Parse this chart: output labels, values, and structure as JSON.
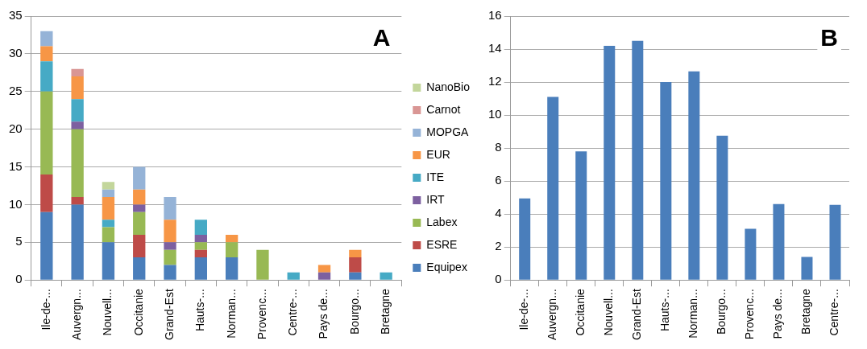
{
  "chart_data": [
    {
      "type": "bar",
      "stacked": true,
      "annotations": [
        "A"
      ],
      "categories": [
        "Ile-de-...",
        "Auvergn...",
        "Nouvell...",
        "Occitanie",
        "Grand-Est",
        "Hauts-...",
        "Norman...",
        "Provenc...",
        "Centre-...",
        "Pays de...",
        "Bourgo...",
        "Bretagne"
      ],
      "series": [
        {
          "name": "Equipex",
          "color": "#4a7ebb",
          "values": [
            9,
            10,
            5,
            3,
            2,
            3,
            3,
            0,
            0,
            0,
            1,
            0
          ]
        },
        {
          "name": "ESRE",
          "color": "#be4b48",
          "values": [
            5,
            1,
            0,
            3,
            0,
            1,
            0,
            0,
            0,
            0,
            2,
            0
          ]
        },
        {
          "name": "Labex",
          "color": "#98b954",
          "values": [
            11,
            9,
            2,
            3,
            2,
            1,
            2,
            4,
            0,
            0,
            0,
            0
          ]
        },
        {
          "name": "IRT",
          "color": "#7d60a0",
          "values": [
            0,
            1,
            0,
            1,
            1,
            1,
            0,
            0,
            0,
            1,
            0,
            0
          ]
        },
        {
          "name": "ITE",
          "color": "#46aac5",
          "values": [
            4,
            3,
            1,
            0,
            0,
            2,
            0,
            0,
            1,
            0,
            0,
            1
          ]
        },
        {
          "name": "EUR",
          "color": "#f79646",
          "values": [
            2,
            3,
            3,
            2,
            3,
            0,
            1,
            0,
            0,
            1,
            1,
            0
          ]
        },
        {
          "name": "MOPGA",
          "color": "#95b3d7",
          "values": [
            2,
            0,
            1,
            3,
            3,
            0,
            0,
            0,
            0,
            0,
            0,
            0
          ]
        },
        {
          "name": "Carnot",
          "color": "#d99694",
          "values": [
            0,
            1,
            0,
            0,
            0,
            0,
            0,
            0,
            0,
            0,
            0,
            0
          ]
        },
        {
          "name": "NanoBio",
          "color": "#c3d69b",
          "values": [
            0,
            0,
            1,
            0,
            0,
            0,
            0,
            0,
            0,
            0,
            0,
            0
          ]
        }
      ],
      "ylim": [
        0,
        35
      ],
      "yticks": [
        0,
        5,
        10,
        15,
        20,
        25,
        30,
        35
      ],
      "grid": "y",
      "legend": "right"
    },
    {
      "type": "bar",
      "annotations": [
        "B"
      ],
      "categories": [
        "Ile-de-...",
        "Auvergn...",
        "Occitanie",
        "Nouvell...",
        "Grand-Est",
        "Hauts-...",
        "Norman...",
        "Bourgo...",
        "Provenc...",
        "Pays de...",
        "Bretagne",
        "Centre-..."
      ],
      "values": [
        4.95,
        11.1,
        7.8,
        14.2,
        14.5,
        12,
        12.65,
        8.75,
        3.1,
        4.6,
        1.4,
        4.55
      ],
      "color": "#4a7ebb",
      "ylim": [
        0,
        16
      ],
      "yticks": [
        0,
        2,
        4,
        6,
        8,
        10,
        12,
        14,
        16
      ],
      "grid": "y"
    }
  ]
}
